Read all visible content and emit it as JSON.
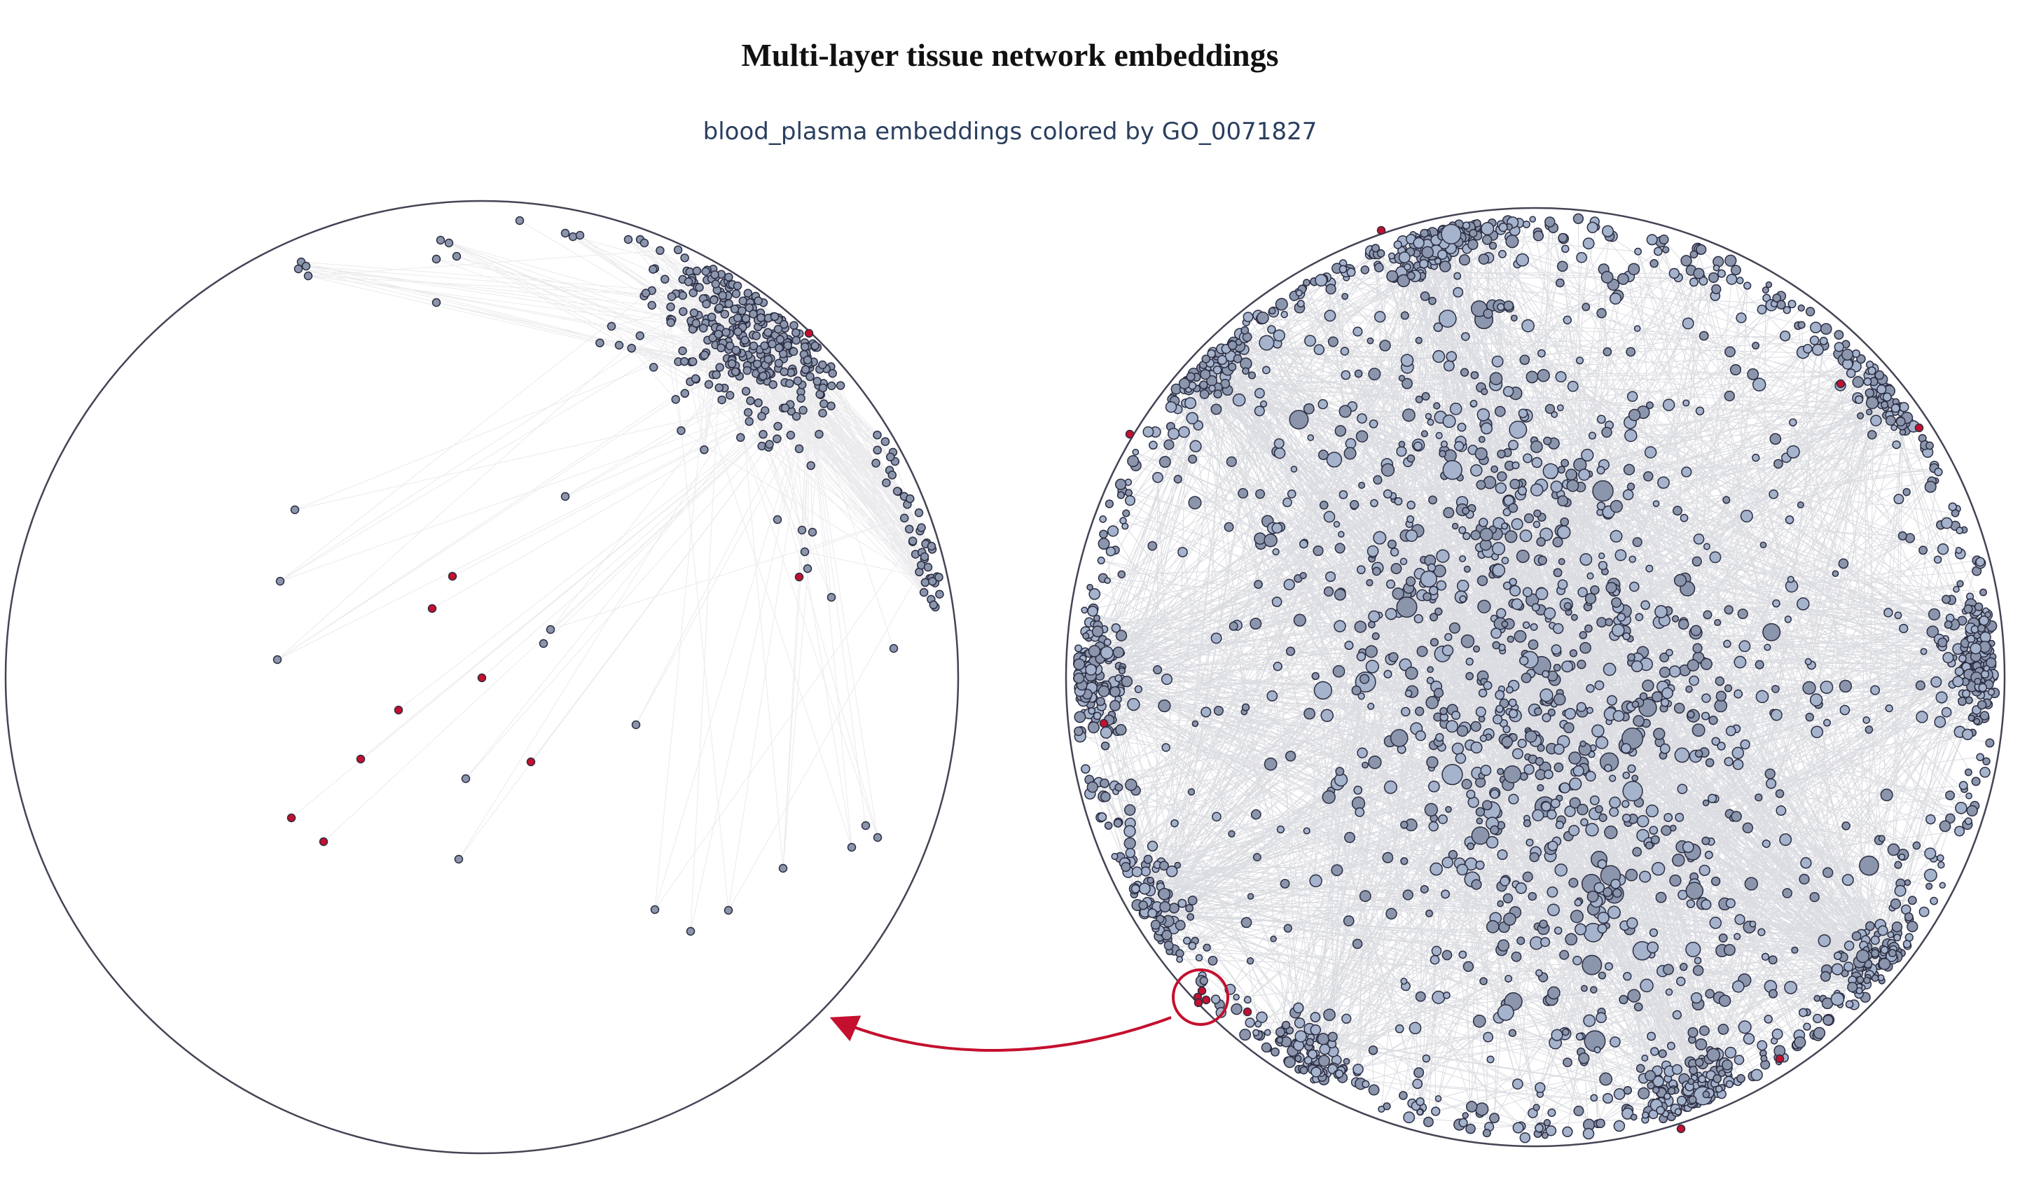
{
  "figure": {
    "title": "Multi-layer tissue network embeddings",
    "subtitle": "blood_plasma embeddings colored by GO_0071827"
  },
  "colors": {
    "background": "#ffffff",
    "disk_outline": "#444455",
    "node_default": "#8b96ad",
    "node_default_light": "#a5b3cc",
    "node_stroke": "#2b2d42",
    "node_highlight": "#c4102e",
    "edge": "#3a3d58",
    "arrow": "#c4102e",
    "subtitle": "#2a3f5f"
  },
  "panels": {
    "zoomed_view": "zoomed-poincare-disk",
    "full_view": "full-poincare-disk",
    "callout": "zoom-callout-arrow"
  }
}
